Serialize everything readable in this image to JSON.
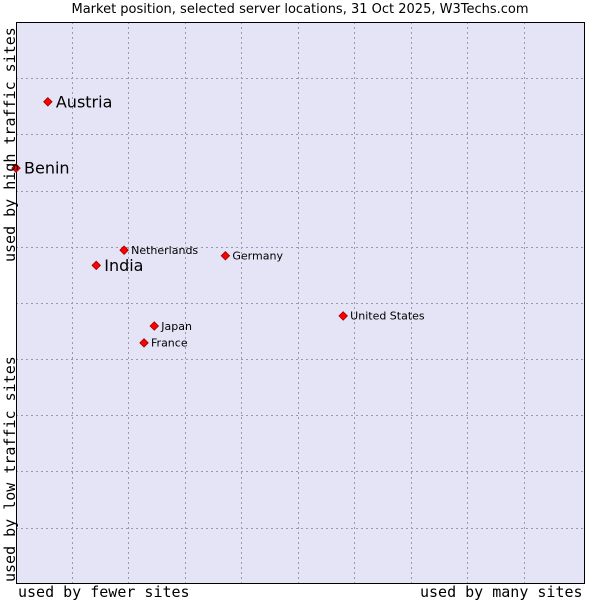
{
  "chart_data": {
    "type": "scatter",
    "title": "Market position, selected server locations, 31 Oct 2025, W3Techs.com",
    "ylabel_high": "used by high traffic sites",
    "ylabel_low": "used by low traffic sites",
    "xlabel_low": "used by fewer sites",
    "xlabel_high": "used by many sites",
    "xlim": [
      0,
      100
    ],
    "ylim": [
      0,
      100
    ],
    "grid": true,
    "colors": {
      "background": "#e4e4f6",
      "grid": "#9999aa",
      "border": "#000000",
      "marker": "#ff0000",
      "marker_outline": "#990000"
    },
    "points": [
      {
        "label": "Austria",
        "x": 5.6,
        "y": 85.8,
        "emphasis": true
      },
      {
        "label": "Benin",
        "x": 0.0,
        "y": 74.0,
        "emphasis": true
      },
      {
        "label": "Netherlands",
        "x": 19.0,
        "y": 59.4,
        "emphasis": false
      },
      {
        "label": "India",
        "x": 14.1,
        "y": 56.7,
        "emphasis": true
      },
      {
        "label": "Germany",
        "x": 36.8,
        "y": 58.4,
        "emphasis": false
      },
      {
        "label": "United States",
        "x": 57.5,
        "y": 47.7,
        "emphasis": false
      },
      {
        "label": "Japan",
        "x": 24.3,
        "y": 45.9,
        "emphasis": false
      },
      {
        "label": "France",
        "x": 22.5,
        "y": 42.9,
        "emphasis": false
      }
    ]
  }
}
